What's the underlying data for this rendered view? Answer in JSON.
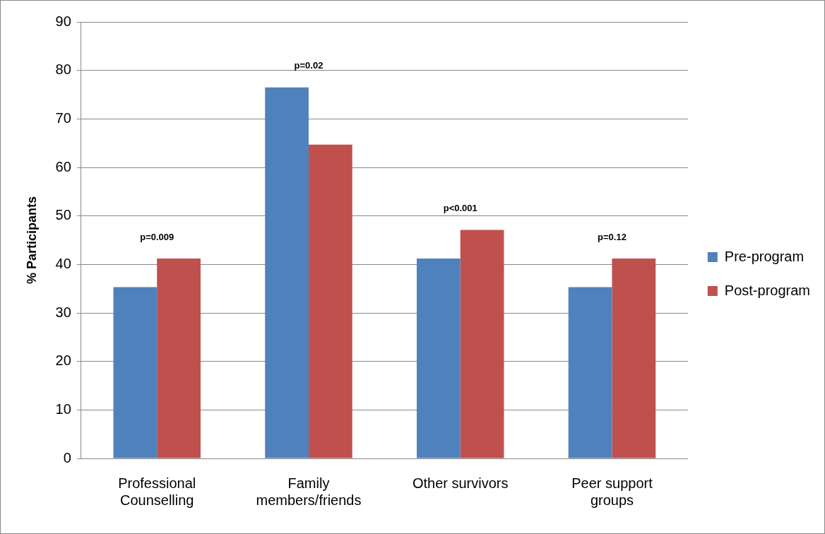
{
  "chart_data": {
    "type": "bar",
    "ylabel": "% Participants",
    "categories": [
      "Professional\nCounselling",
      "Family\nmembers/friends",
      "Other survivors",
      "Peer support\ngroups"
    ],
    "series": [
      {
        "name": "Pre-program",
        "color": "#4f81bd",
        "values": [
          35.3,
          76.5,
          41.2,
          35.3
        ]
      },
      {
        "name": "Post-program",
        "color": "#c0504d",
        "values": [
          41.2,
          64.7,
          47.1,
          41.2
        ]
      }
    ],
    "ylim": [
      0,
      90
    ],
    "yticks": [
      0,
      10,
      20,
      30,
      40,
      50,
      60,
      70,
      80,
      90
    ],
    "grid": "y",
    "legend": "right",
    "annotations": [
      "p=0.009",
      "p=0.02",
      "p<0.001",
      "p=0.12"
    ]
  }
}
